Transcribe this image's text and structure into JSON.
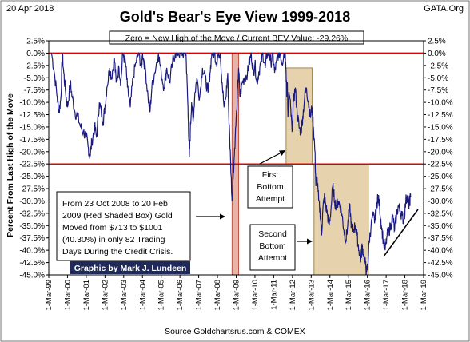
{
  "header": {
    "date": "20 Apr 2018",
    "source_tag": "GATA.Org"
  },
  "chart_data": {
    "type": "line",
    "title": "Gold's Bear's Eye View 1999-2018",
    "subtitle": "Zero = New High of the Move / Current BEV Value:  -29.26%",
    "ylabel": "Percent  From Last High of the Move",
    "xlabel": "Source Goldchartsrus.com & COMEX",
    "ylim": [
      -45,
      2.5
    ],
    "y_ticks": [
      2.5,
      0,
      -2.5,
      -5,
      -7.5,
      -10,
      -12.5,
      -15,
      -17.5,
      -20,
      -22.5,
      -25,
      -27.5,
      -30,
      -32.5,
      -35,
      -37.5,
      -40,
      -42.5,
      -45
    ],
    "y_tick_labels": [
      "2.5%",
      "0.0%",
      "-2.5%",
      "-5.0%",
      "-7.5%",
      "-10.0%",
      "-12.5%",
      "-15.0%",
      "-17.5%",
      "-20.0%",
      "-22.5%",
      "-25.0%",
      "-27.5%",
      "-30.0%",
      "-32.5%",
      "-35.0%",
      "-37.5%",
      "-40.0%",
      "-42.5%",
      "-45.0%"
    ],
    "x_tick_labels": [
      "1-Mar-99",
      "1-Mar-00",
      "1-Mar-01",
      "1-Mar-02",
      "1-Mar-03",
      "1-Mar-04",
      "1-Mar-05",
      "1-Mar-06",
      "1-Mar-07",
      "1-Mar-08",
      "1-Mar-09",
      "1-Mar-10",
      "1-Mar-11",
      "1-Mar-12",
      "1-Mar-13",
      "1-Mar-14",
      "1-Mar-15",
      "1-Mar-16",
      "1-Mar-17",
      "1-Mar-18",
      "1-Mar-19"
    ],
    "xlim": [
      1999.0,
      2019.0
    ],
    "reference_lines": [
      0,
      -22.5
    ],
    "series": [
      {
        "color": "#1a1a80",
        "points": [
          [
            1999.15,
            0
          ],
          [
            1999.3,
            -4
          ],
          [
            1999.45,
            -9
          ],
          [
            1999.55,
            -12
          ],
          [
            1999.65,
            -9
          ],
          [
            1999.72,
            0
          ],
          [
            1999.8,
            -4
          ],
          [
            1999.9,
            -8
          ],
          [
            2000.0,
            -11
          ],
          [
            2000.15,
            -6
          ],
          [
            2000.25,
            -9
          ],
          [
            2000.4,
            -12
          ],
          [
            2000.55,
            -13
          ],
          [
            2000.7,
            -15
          ],
          [
            2000.85,
            -16
          ],
          [
            2001.0,
            -17
          ],
          [
            2001.1,
            -19
          ],
          [
            2001.2,
            -21
          ],
          [
            2001.3,
            -18
          ],
          [
            2001.45,
            -15
          ],
          [
            2001.55,
            -17
          ],
          [
            2001.7,
            -10
          ],
          [
            2001.8,
            -12
          ],
          [
            2001.9,
            -14
          ],
          [
            2002.0,
            -11
          ],
          [
            2002.1,
            -7
          ],
          [
            2002.25,
            -3
          ],
          [
            2002.35,
            -5
          ],
          [
            2002.5,
            -1
          ],
          [
            2002.6,
            -6
          ],
          [
            2002.75,
            -3
          ],
          [
            2002.85,
            -6
          ],
          [
            2002.95,
            0
          ],
          [
            2003.1,
            -2
          ],
          [
            2003.2,
            -7
          ],
          [
            2003.35,
            -11
          ],
          [
            2003.5,
            -5
          ],
          [
            2003.65,
            -2
          ],
          [
            2003.8,
            0
          ],
          [
            2003.95,
            -3
          ],
          [
            2004.0,
            0
          ],
          [
            2004.15,
            -3
          ],
          [
            2004.3,
            -9
          ],
          [
            2004.4,
            -12
          ],
          [
            2004.5,
            -7
          ],
          [
            2004.65,
            -4
          ],
          [
            2004.85,
            0
          ],
          [
            2005.0,
            -4
          ],
          [
            2005.15,
            -7
          ],
          [
            2005.3,
            -3
          ],
          [
            2005.45,
            -6
          ],
          [
            2005.6,
            -2
          ],
          [
            2005.75,
            0
          ],
          [
            2005.9,
            0
          ],
          [
            2006.05,
            0
          ],
          [
            2006.2,
            0
          ],
          [
            2006.32,
            0
          ],
          [
            2006.38,
            -6
          ],
          [
            2006.45,
            -14
          ],
          [
            2006.5,
            -21
          ],
          [
            2006.55,
            -16
          ],
          [
            2006.62,
            -10
          ],
          [
            2006.7,
            -14
          ],
          [
            2006.8,
            -8
          ],
          [
            2006.9,
            -5
          ],
          [
            2007.05,
            -9
          ],
          [
            2007.2,
            -3
          ],
          [
            2007.35,
            -5
          ],
          [
            2007.5,
            -8
          ],
          [
            2007.6,
            -4
          ],
          [
            2007.7,
            0
          ],
          [
            2007.85,
            0
          ],
          [
            2007.95,
            -2
          ],
          [
            2008.05,
            0
          ],
          [
            2008.15,
            0
          ],
          [
            2008.25,
            -6
          ],
          [
            2008.35,
            -11
          ],
          [
            2008.45,
            -9
          ],
          [
            2008.55,
            -4
          ],
          [
            2008.6,
            -12
          ],
          [
            2008.7,
            -22
          ],
          [
            2008.78,
            -30
          ],
          [
            2008.85,
            -24
          ],
          [
            2008.95,
            -17
          ],
          [
            2009.05,
            -10
          ],
          [
            2009.13,
            -3
          ],
          [
            2009.2,
            -9
          ],
          [
            2009.32,
            -6
          ],
          [
            2009.45,
            -5
          ],
          [
            2009.6,
            -4
          ],
          [
            2009.7,
            -2
          ],
          [
            2009.8,
            0
          ],
          [
            2009.92,
            -4
          ],
          [
            2010.0,
            -2
          ],
          [
            2010.1,
            -6
          ],
          [
            2010.2,
            -4
          ],
          [
            2010.32,
            -2
          ],
          [
            2010.42,
            0
          ],
          [
            2010.55,
            -3
          ],
          [
            2010.65,
            0
          ],
          [
            2010.75,
            0
          ],
          [
            2010.85,
            -2
          ],
          [
            2010.95,
            0
          ],
          [
            2011.05,
            -4
          ],
          [
            2011.15,
            -2
          ],
          [
            2011.25,
            0
          ],
          [
            2011.35,
            0
          ],
          [
            2011.45,
            -2
          ],
          [
            2011.55,
            0
          ],
          [
            2011.62,
            0
          ],
          [
            2011.66,
            -4
          ],
          [
            2011.7,
            -9
          ],
          [
            2011.73,
            -6
          ],
          [
            2011.76,
            -13
          ],
          [
            2011.82,
            -8
          ],
          [
            2011.9,
            -11
          ],
          [
            2011.98,
            -16
          ],
          [
            2012.05,
            -10
          ],
          [
            2012.15,
            -7
          ],
          [
            2012.25,
            -12
          ],
          [
            2012.35,
            -15
          ],
          [
            2012.45,
            -16
          ],
          [
            2012.55,
            -13
          ],
          [
            2012.65,
            -9
          ],
          [
            2012.75,
            -7
          ],
          [
            2012.85,
            -10
          ],
          [
            2012.95,
            -13
          ],
          [
            2013.05,
            -11
          ],
          [
            2013.12,
            -15
          ],
          [
            2013.2,
            -20
          ],
          [
            2013.25,
            -27
          ],
          [
            2013.3,
            -25
          ],
          [
            2013.4,
            -30
          ],
          [
            2013.5,
            -33
          ],
          [
            2013.55,
            -37
          ],
          [
            2013.62,
            -32
          ],
          [
            2013.7,
            -29
          ],
          [
            2013.78,
            -31
          ],
          [
            2013.88,
            -33
          ],
          [
            2013.95,
            -35
          ],
          [
            2014.05,
            -32
          ],
          [
            2014.15,
            -27
          ],
          [
            2014.25,
            -30
          ],
          [
            2014.35,
            -31
          ],
          [
            2014.45,
            -30
          ],
          [
            2014.55,
            -31
          ],
          [
            2014.65,
            -33
          ],
          [
            2014.75,
            -36
          ],
          [
            2014.85,
            -38
          ],
          [
            2014.95,
            -35
          ],
          [
            2015.05,
            -31
          ],
          [
            2015.15,
            -35
          ],
          [
            2015.25,
            -36
          ],
          [
            2015.35,
            -35
          ],
          [
            2015.45,
            -37
          ],
          [
            2015.55,
            -40
          ],
          [
            2015.65,
            -42
          ],
          [
            2015.72,
            -39
          ],
          [
            2015.8,
            -41
          ],
          [
            2015.9,
            -43
          ],
          [
            2015.96,
            -44.5
          ],
          [
            2016.02,
            -43
          ],
          [
            2016.1,
            -38
          ],
          [
            2016.2,
            -35
          ],
          [
            2016.3,
            -33
          ],
          [
            2016.4,
            -34
          ],
          [
            2016.5,
            -31
          ],
          [
            2016.55,
            -29
          ],
          [
            2016.65,
            -31
          ],
          [
            2016.75,
            -35
          ],
          [
            2016.85,
            -38
          ],
          [
            2016.95,
            -40
          ],
          [
            2017.05,
            -37
          ],
          [
            2017.15,
            -36
          ],
          [
            2017.25,
            -35
          ],
          [
            2017.35,
            -33
          ],
          [
            2017.45,
            -36
          ],
          [
            2017.55,
            -33
          ],
          [
            2017.65,
            -31
          ],
          [
            2017.75,
            -32
          ],
          [
            2017.85,
            -33
          ],
          [
            2017.95,
            -34
          ],
          [
            2018.05,
            -30
          ],
          [
            2018.12,
            -29
          ],
          [
            2018.2,
            -31
          ],
          [
            2018.25,
            -30
          ],
          [
            2018.31,
            -29.26
          ]
        ]
      }
    ],
    "shaded_boxes": [
      {
        "x": [
          2008.78,
          2009.13
        ],
        "y": [
          0,
          -45
        ],
        "color": "#e8b4a8"
      },
      {
        "x": [
          2011.66,
          2013.05
        ],
        "y": [
          -3,
          -22.5
        ],
        "color": "#e6d3ae"
      },
      {
        "x": [
          2013.15,
          2016.05
        ],
        "y": [
          -22.5,
          -45
        ],
        "color": "#e6d3ae"
      }
    ],
    "annotations": {
      "credit_crisis": [
        "From  23 Oct 2008 to 20 Feb",
        "2009 (Red Shaded Box)  Gold",
        "Moved from $713 to $1001",
        "(40.30%) in only 82 Trading",
        "Days During the Credit Crisis."
      ],
      "first_bottom": [
        "First",
        "Bottom",
        "Attempt"
      ],
      "second_bottom": [
        "Second",
        "Bottom",
        "Attempt"
      ]
    },
    "credit": "Graphic by Mark J. Lundeen"
  },
  "colors": {
    "line": "#1a1a80",
    "reference_line": "#e00000",
    "credit_bg": "#1f2a5a"
  }
}
